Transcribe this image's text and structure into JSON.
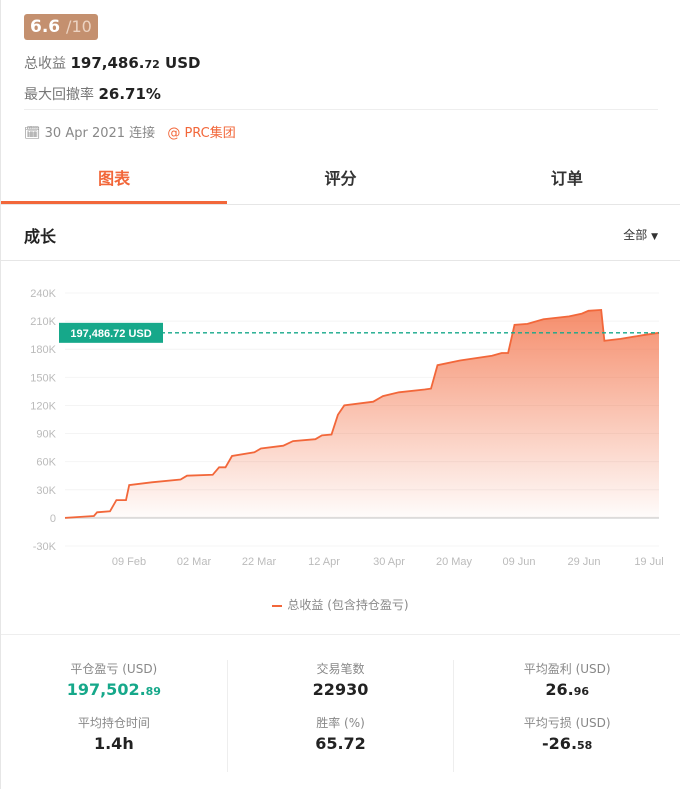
{
  "rating": {
    "score": "6.6",
    "max": "/10"
  },
  "total_profit": {
    "label": "总收益",
    "int": "197,486.",
    "dec": "72",
    "unit": "USD"
  },
  "max_drawdown": {
    "label": "最大回撤率",
    "value": "26.71%"
  },
  "meta": {
    "icon": "calendar-icon",
    "date": "30 Apr 2021 连接",
    "broker": "@ PRC集团"
  },
  "tabs": [
    {
      "label": "图表",
      "active": true
    },
    {
      "label": "评分"
    },
    {
      "label": "订单"
    }
  ],
  "section": {
    "title": "成长",
    "filter": "全部"
  },
  "colors": {
    "accent": "#f2673a",
    "positive": "#16a88a",
    "rating": "#c4906f"
  },
  "chart_data": {
    "type": "area",
    "current_value_label": "197,486.72 USD",
    "current_value": 197486.72,
    "ylim": [
      -30000,
      240000
    ],
    "yticks": [
      {
        "v": 240000,
        "t": "240K"
      },
      {
        "v": 210000,
        "t": "210K"
      },
      {
        "v": 180000,
        "t": "180K"
      },
      {
        "v": 150000,
        "t": "150K"
      },
      {
        "v": 120000,
        "t": "120K"
      },
      {
        "v": 90000,
        "t": "90K"
      },
      {
        "v": 60000,
        "t": "60K"
      },
      {
        "v": 30000,
        "t": "30K"
      },
      {
        "v": 0,
        "t": "0"
      },
      {
        "v": -30000,
        "t": "-30K"
      }
    ],
    "xticks": [
      "09 Feb",
      "02 Mar",
      "22 Mar",
      "12 Apr",
      "30 Apr",
      "20 May",
      "09 Jun",
      "29 Jun",
      "19 Jul"
    ],
    "xlim": [
      "2021-01-20",
      "2021-07-24"
    ],
    "grid": true,
    "legend": {
      "position": "bottom",
      "label": "总收益 (包含持仓盈亏)"
    },
    "series": [
      {
        "name": "总收益 (包含持仓盈亏)",
        "points": [
          [
            "2021-01-20",
            0
          ],
          [
            "2021-01-29",
            2000
          ],
          [
            "2021-01-30",
            6000
          ],
          [
            "2021-02-03",
            7000
          ],
          [
            "2021-02-05",
            19000
          ],
          [
            "2021-02-08",
            19000
          ],
          [
            "2021-02-09",
            35000
          ],
          [
            "2021-02-16",
            38000
          ],
          [
            "2021-02-25",
            41000
          ],
          [
            "2021-02-27",
            45000
          ],
          [
            "2021-03-07",
            46000
          ],
          [
            "2021-03-09",
            54000
          ],
          [
            "2021-03-11",
            54000
          ],
          [
            "2021-03-13",
            66000
          ],
          [
            "2021-03-20",
            70000
          ],
          [
            "2021-03-22",
            74000
          ],
          [
            "2021-03-29",
            77000
          ],
          [
            "2021-04-01",
            82000
          ],
          [
            "2021-04-08",
            84000
          ],
          [
            "2021-04-10",
            88000
          ],
          [
            "2021-04-13",
            89000
          ],
          [
            "2021-04-15",
            110000
          ],
          [
            "2021-04-17",
            120000
          ],
          [
            "2021-04-26",
            124000
          ],
          [
            "2021-04-29",
            130000
          ],
          [
            "2021-05-04",
            134000
          ],
          [
            "2021-05-12",
            137000
          ],
          [
            "2021-05-14",
            138000
          ],
          [
            "2021-05-16",
            163000
          ],
          [
            "2021-05-23",
            168000
          ],
          [
            "2021-06-02",
            173000
          ],
          [
            "2021-06-05",
            176000
          ],
          [
            "2021-06-07",
            176000
          ],
          [
            "2021-06-09",
            206000
          ],
          [
            "2021-06-13",
            207000
          ],
          [
            "2021-06-18",
            212000
          ],
          [
            "2021-06-26",
            215000
          ],
          [
            "2021-06-30",
            218000
          ],
          [
            "2021-07-02",
            221000
          ],
          [
            "2021-07-06",
            222000
          ],
          [
            "2021-07-07",
            189000
          ],
          [
            "2021-07-12",
            191000
          ],
          [
            "2021-07-19",
            195000
          ],
          [
            "2021-07-24",
            197486.72
          ]
        ]
      }
    ]
  },
  "stats": [
    {
      "label": "平仓盈亏 (USD)",
      "int": "197,502.",
      "dec": "89",
      "positive": true
    },
    {
      "label": "交易笔数",
      "int": "22930",
      "dec": ""
    },
    {
      "label": "平均盈利 (USD)",
      "int": "26.",
      "dec": "96"
    },
    {
      "label": "平均持仓时间",
      "int": "1.4h",
      "dec": ""
    },
    {
      "label": "胜率 (%)",
      "int": "65.72",
      "dec": ""
    },
    {
      "label": "平均亏损 (USD)",
      "int": "-26.",
      "dec": "58"
    }
  ]
}
